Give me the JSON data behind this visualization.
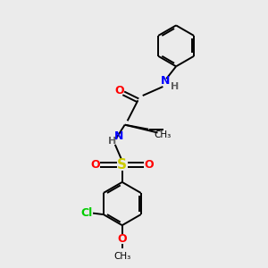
{
  "background_color": "#ebebeb",
  "bond_color": "#000000",
  "atom_colors": {
    "O": "#ff0000",
    "N": "#0000ff",
    "S": "#cccc00",
    "Cl": "#00cc00",
    "C": "#000000",
    "H": "#606060"
  },
  "figsize": [
    3.0,
    3.0
  ],
  "dpi": 100
}
